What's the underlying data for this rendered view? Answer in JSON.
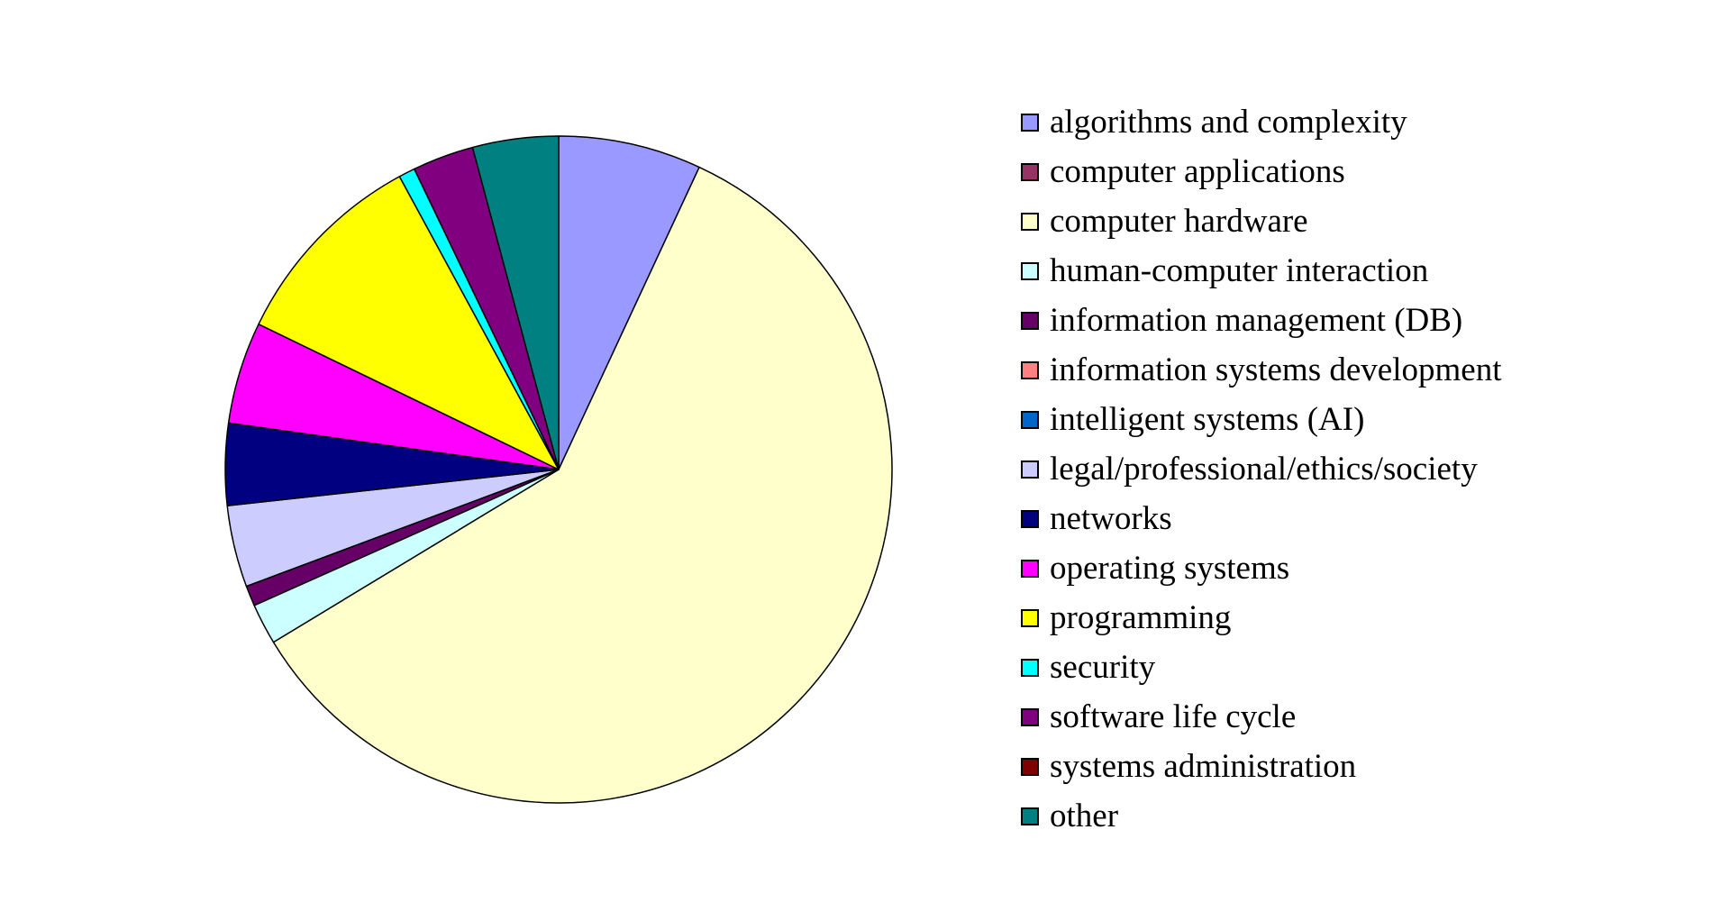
{
  "chart_data": {
    "type": "pie",
    "title": "",
    "legend_position": "right",
    "start": "top",
    "direction": "clockwise",
    "slices": [
      {
        "label": "algorithms and complexity",
        "value": 7.0,
        "color": "#9999ff"
      },
      {
        "label": "computer applications",
        "value": 0.0,
        "color": "#993366"
      },
      {
        "label": "computer hardware",
        "value": 60.0,
        "color": "#ffffcc"
      },
      {
        "label": "human-computer interaction",
        "value": 2.0,
        "color": "#ccffff"
      },
      {
        "label": "information management (DB)",
        "value": 1.0,
        "color": "#660066"
      },
      {
        "label": "information systems development",
        "value": 0.0,
        "color": "#ff8080"
      },
      {
        "label": "intelligent systems (AI)",
        "value": 0.0,
        "color": "#0066cc"
      },
      {
        "label": "legal/professional/ethics/society",
        "value": 4.0,
        "color": "#ccccff"
      },
      {
        "label": "networks",
        "value": 4.0,
        "color": "#000080"
      },
      {
        "label": "operating systems",
        "value": 5.0,
        "color": "#ff00ff"
      },
      {
        "label": "programming",
        "value": 10.0,
        "color": "#ffff00"
      },
      {
        "label": "security",
        "value": 0.8,
        "color": "#00ffff"
      },
      {
        "label": "software life cycle",
        "value": 3.0,
        "color": "#800080"
      },
      {
        "label": "systems administration",
        "value": 0.0,
        "color": "#800000"
      },
      {
        "label": "other",
        "value": 4.2,
        "color": "#008080"
      }
    ]
  }
}
